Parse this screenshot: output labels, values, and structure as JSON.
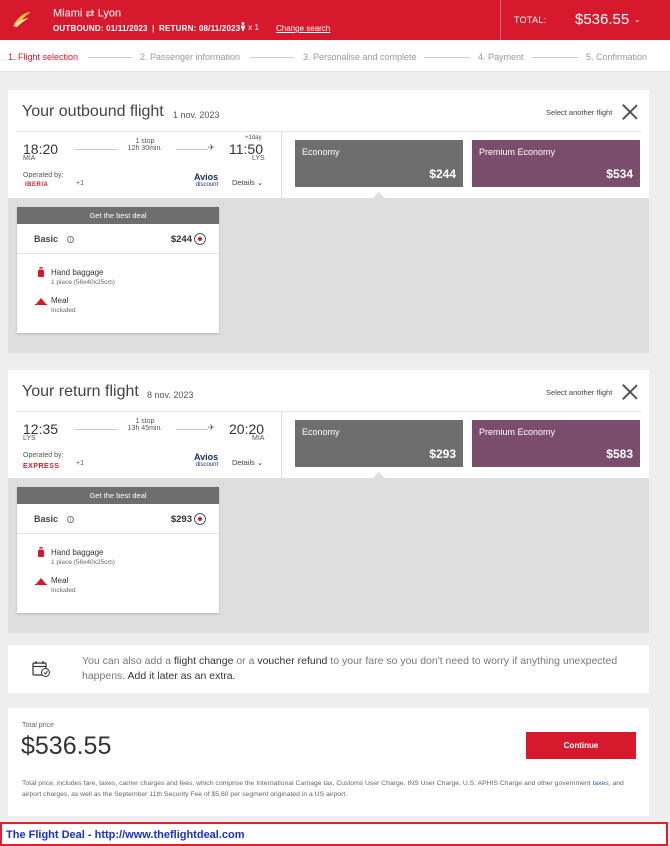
{
  "header": {
    "origin": "Miami",
    "swap_symbol": "⇄",
    "destination": "Lyon",
    "outbound_label": "OUTBOUND: 01/11/2023",
    "separator": "|",
    "return_label": "RETURN: 08/11/2023",
    "passengers": "x 1",
    "change_search": "Change search",
    "total_label": "TOTAL:",
    "total_value": "$536.55",
    "chevron": "⌄"
  },
  "steps": [
    {
      "label": "1. Flight selection",
      "active": true
    },
    {
      "label": "2. Passenger information",
      "active": false
    },
    {
      "label": "3. Personalise and complete",
      "active": false
    },
    {
      "label": "4. Payment",
      "active": false
    },
    {
      "label": "5. Confirmation",
      "active": false
    }
  ],
  "outbound": {
    "title": "Your outbound flight",
    "date": "1 nov. 2023",
    "select_another": "Select another flight",
    "dep_time": "18:20",
    "dep_iata": "MIA",
    "stops": "1 stop",
    "duration": "12h 30min.",
    "plus_day": "+1day",
    "arr_time": "11:50",
    "arr_iata": "LYS",
    "operated_by": "Operated by:",
    "carrier": "IBERIA",
    "carrier_extra": "+1",
    "avios": "Avios",
    "avios_sub": "discount",
    "details": "Details ⌄",
    "fares": [
      {
        "name": "Economy",
        "price": "$244"
      },
      {
        "name": "Premium Economy",
        "price": "$534"
      }
    ],
    "deal": {
      "header": "Get the best deal",
      "fare_name": "Basic",
      "info": "i",
      "price": "$244",
      "baggage_label": "Hand baggage",
      "baggage_sub": "1 piece (56x40x25cm)",
      "meal_label": "Meal",
      "meal_sub": "Included"
    }
  },
  "return": {
    "title": "Your return flight",
    "date": "8 nov. 2023",
    "select_another": "Select another flight",
    "dep_time": "12:35",
    "dep_iata": "LYS",
    "stops": "1 stop",
    "duration": "13h 45min.",
    "arr_time": "20:20",
    "arr_iata": "MIA",
    "operated_by": "Operated by:",
    "carrier": "EXPRESS",
    "carrier_extra": "+1",
    "avios": "Avios",
    "avios_sub": "discount",
    "details": "Details ⌄",
    "fares": [
      {
        "name": "Economy",
        "price": "$293"
      },
      {
        "name": "Premium Economy",
        "price": "$583"
      }
    ],
    "deal": {
      "header": "Get the best deal",
      "fare_name": "Basic",
      "info": "i",
      "price": "$293",
      "baggage_label": "Hand baggage",
      "baggage_sub": "1 piece (56x40x25cm)",
      "meal_label": "Meal",
      "meal_sub": "Included"
    }
  },
  "extras": {
    "t1": "You can also add a ",
    "t2": "flight change",
    "t3": " or a ",
    "t4": "voucher refund",
    "t5": " to your fare so you don't need to worry if anything unexpected happens. ",
    "t6": "Add it later as an extra."
  },
  "total": {
    "label": "Total price",
    "value": "$536.55",
    "continue": "Continue",
    "disclaimer_1": "Total price, includes fare, taxes, carrier charges and fees, which comprise the International Carriage tax, Customs User Charge, INS User Charge, U.S. APHIS Charge and other government ",
    "disclaimer_link": "taxes",
    "disclaimer_2": ", and airport charges, as well as the September 11th Security Fee of $5,60 per segment originated in a US airport."
  },
  "banner": {
    "text": "The Flight Deal - http://www.theflightdeal.com"
  },
  "colors": {
    "brand_red": "#d7192d",
    "economy": "#6e6e6e",
    "premium": "#7b4d6c"
  }
}
